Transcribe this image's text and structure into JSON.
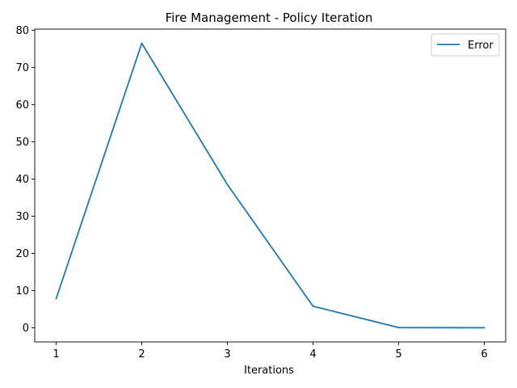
{
  "chart_data": {
    "type": "line",
    "title": "Fire Management - Policy Iteration",
    "xlabel": "Iterations",
    "ylabel": "",
    "x": [
      1,
      2,
      3,
      4,
      5,
      6
    ],
    "series": [
      {
        "name": "Error",
        "values": [
          7.8,
          76.5,
          38.5,
          5.8,
          0.05,
          0.02
        ]
      }
    ],
    "xlim": [
      0.75,
      6.25
    ],
    "ylim": [
      -3.8,
      80.3
    ],
    "xticks": [
      "1",
      "2",
      "3",
      "4",
      "5",
      "6"
    ],
    "yticks": [
      "0",
      "10",
      "20",
      "30",
      "40",
      "50",
      "60",
      "70",
      "80"
    ],
    "ytick_values": [
      0,
      10,
      20,
      30,
      40,
      50,
      60,
      70,
      80
    ],
    "xtick_values": [
      1,
      2,
      3,
      4,
      5,
      6
    ],
    "grid": false,
    "legend": "top-right",
    "colors": {
      "series": "#1f77b4",
      "axes": "#000000"
    }
  }
}
